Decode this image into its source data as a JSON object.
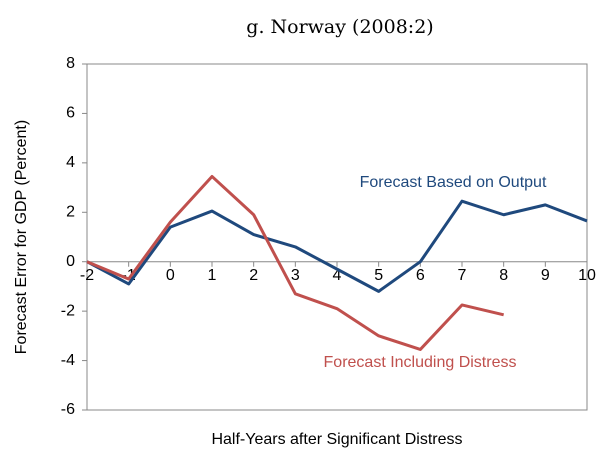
{
  "chart_data": {
    "type": "line",
    "title": "g. Norway (2008:2)",
    "x_label": "Half-Years after Significant Distress",
    "y_label": "Forecast Error for GDP (Percent)",
    "x": [
      -2,
      -1,
      0,
      1,
      2,
      3,
      4,
      5,
      6,
      7,
      8,
      9,
      10
    ],
    "series": [
      {
        "name": "Forecast Based on Output",
        "color": "#1f497d",
        "values": [
          0,
          -0.9,
          1.4,
          2.05,
          1.1,
          0.6,
          -0.3,
          -1.2,
          0,
          2.45,
          1.9,
          2.3,
          1.65
        ]
      },
      {
        "name": "Forecast Including Distress",
        "color": "#c0504d",
        "values": [
          0,
          -0.7,
          1.6,
          3.45,
          1.9,
          -1.3,
          -1.9,
          -3,
          -3.55,
          -1.75,
          -2.15,
          null,
          null
        ]
      }
    ],
    "xlim": [
      -2,
      10
    ],
    "xticks": [
      -2,
      -1,
      0,
      1,
      2,
      3,
      4,
      5,
      6,
      7,
      8,
      9,
      10
    ],
    "ylim": [
      -6,
      8
    ],
    "yticks": [
      -6,
      -4,
      -2,
      0,
      2,
      4,
      6,
      8
    ]
  }
}
